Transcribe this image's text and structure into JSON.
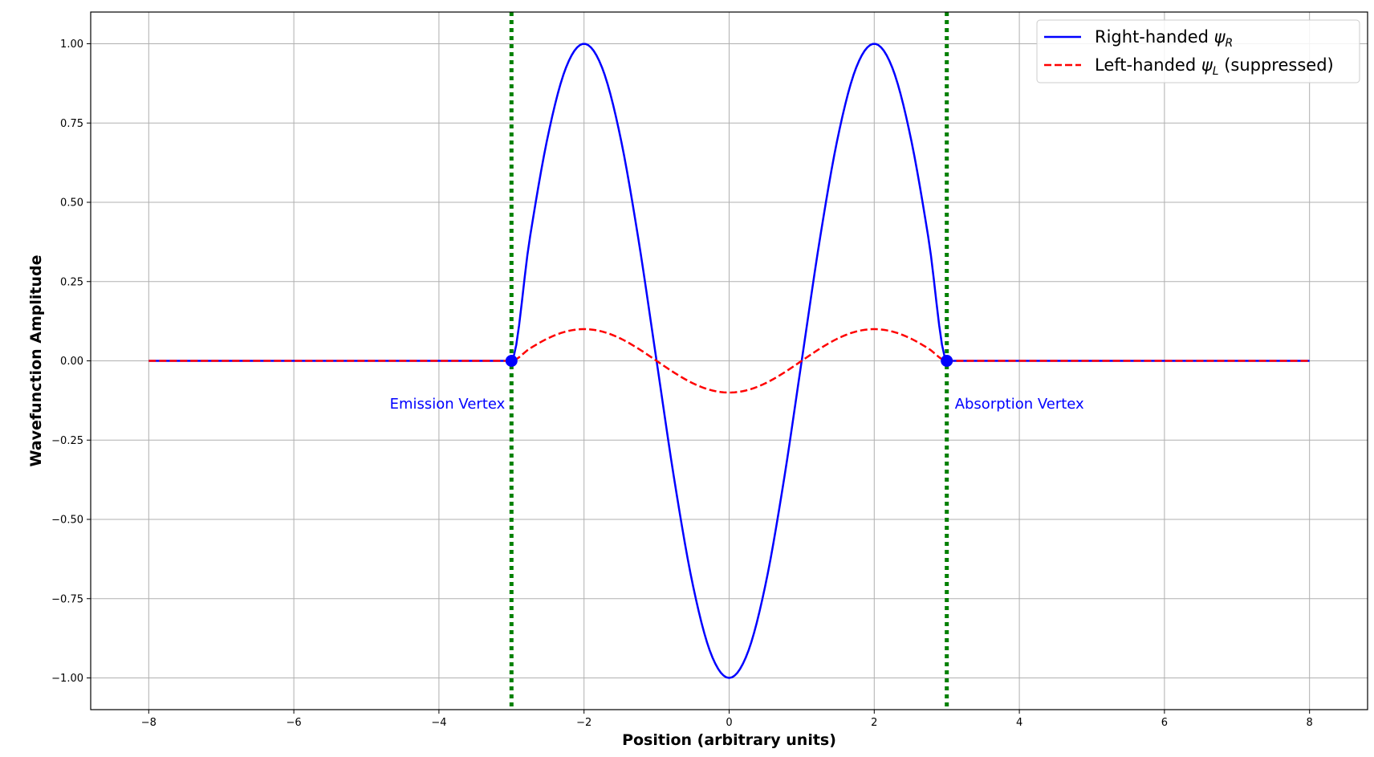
{
  "chart_data": {
    "type": "line",
    "xlabel": "Position (arbitrary units)",
    "ylabel": "Wavefunction Amplitude",
    "xlim": [
      -8.8,
      8.8
    ],
    "ylim": [
      -1.1,
      1.1
    ],
    "x_ticks": [
      -8,
      -6,
      -4,
      -2,
      0,
      2,
      4,
      6,
      8
    ],
    "x_tick_labels": [
      "−8",
      "−6",
      "−4",
      "−2",
      "0",
      "2",
      "4",
      "6",
      "8"
    ],
    "y_ticks": [
      1.0,
      0.75,
      0.5,
      0.25,
      0.0,
      -0.25,
      -0.5,
      -0.75,
      -1.0
    ],
    "y_tick_labels": [
      "1.00",
      "0.75",
      "0.50",
      "0.25",
      "0.00",
      "−0.25",
      "−0.50",
      "−0.75",
      "−1.00"
    ],
    "grid": true,
    "legend_placement": "top-right",
    "series": [
      {
        "name_main": "Right-handed ",
        "name_symbol": "ψ",
        "name_sub": "R",
        "name_suffix": "",
        "color": "#0000ff",
        "style": "solid",
        "x": [
          -8,
          -3,
          -2.75,
          -2.5,
          -2.25,
          -2,
          -1.75,
          -1.5,
          -1.25,
          -1,
          -0.75,
          -0.5,
          -0.25,
          0,
          0.25,
          0.5,
          0.75,
          1,
          1.25,
          1.5,
          1.75,
          2,
          2.25,
          2.5,
          2.75,
          3,
          8
        ],
        "y": [
          0,
          0,
          0.383,
          0.707,
          0.924,
          1,
          0.924,
          0.707,
          0.383,
          0,
          -0.383,
          -0.707,
          -0.924,
          -1,
          -0.924,
          -0.707,
          -0.383,
          0,
          0.383,
          0.707,
          0.924,
          1,
          0.924,
          0.707,
          0.383,
          0,
          0
        ]
      },
      {
        "name_main": "Left-handed ",
        "name_symbol": "ψ",
        "name_sub": "L",
        "name_suffix": " (suppressed)",
        "color": "#ff0000",
        "style": "dashed",
        "x": [
          -8,
          -3,
          -2.75,
          -2.5,
          -2.25,
          -2,
          -1.75,
          -1.5,
          -1.25,
          -1,
          -0.75,
          -0.5,
          -0.25,
          0,
          0.25,
          0.5,
          0.75,
          1,
          1.25,
          1.5,
          1.75,
          2,
          2.25,
          2.5,
          2.75,
          3,
          8
        ],
        "y": [
          0,
          0,
          0.0383,
          0.0707,
          0.0924,
          0.1,
          0.0924,
          0.0707,
          0.0383,
          0,
          -0.0383,
          -0.0707,
          -0.0924,
          -0.1,
          -0.0924,
          -0.0707,
          -0.0383,
          0,
          0.0383,
          0.0707,
          0.0924,
          0.1,
          0.0924,
          0.0707,
          0.0383,
          0,
          0
        ]
      }
    ],
    "vertical_lines": [
      {
        "x": -3,
        "color": "#008000",
        "style": "dotted"
      },
      {
        "x": 3,
        "color": "#008000",
        "style": "dotted"
      }
    ],
    "vertex_points": [
      {
        "x": -3,
        "y": 0,
        "color": "#0000ff"
      },
      {
        "x": 3,
        "y": 0,
        "color": "#0000ff"
      }
    ],
    "annotations": [
      {
        "text": "Emission Vertex",
        "x": -3,
        "y": -0.135,
        "align": "right",
        "color": "#0000ff"
      },
      {
        "text": "Absorption Vertex",
        "x": 3,
        "y": -0.135,
        "align": "left",
        "color": "#0000ff"
      }
    ]
  }
}
